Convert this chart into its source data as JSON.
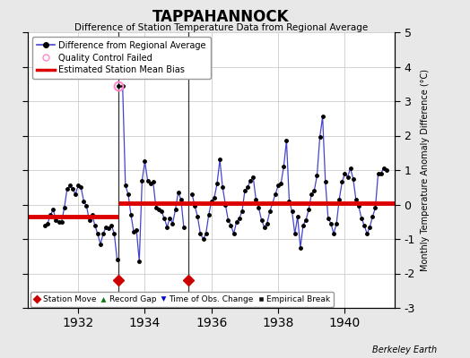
{
  "title": "TAPPAHANNOCK",
  "subtitle": "Difference of Station Temperature Data from Regional Average",
  "ylabel_right": "Monthly Temperature Anomaly Difference (°C)",
  "credit": "Berkeley Earth",
  "xlim": [
    1930.5,
    1941.5
  ],
  "ylim": [
    -3,
    5
  ],
  "yticks": [
    -3,
    -2,
    -1,
    0,
    1,
    2,
    3,
    4,
    5
  ],
  "xticks": [
    1932,
    1934,
    1936,
    1938,
    1940
  ],
  "background_color": "#e8e8e8",
  "plot_bg_color": "#ffffff",
  "line_color": "#4444cc",
  "marker_color": "#000000",
  "bias_color": "#dd0000",
  "qc_marker_color": "#ff88cc",
  "vline_color": "#333333",
  "station_move_color": "#cc0000",
  "record_gap_color": "#007700",
  "time_obs_color": "#0000cc",
  "empirical_break_color": "#111111",
  "segment1_bias": -0.35,
  "segment2_bias": 0.05,
  "segment3_bias": 0.05,
  "segment1_start": 1930.5,
  "segment1_end": 1933.2,
  "segment2_start": 1933.2,
  "segment2_end": 1935.3,
  "segment3_start": 1935.3,
  "segment3_end": 1941.5,
  "vlines": [
    1933.2,
    1935.3
  ],
  "station_moves": [
    1933.2,
    1935.3
  ],
  "qc_fail_time": 1933.2,
  "qc_fail_value": 3.45,
  "data_times": [
    1931.0,
    1931.083,
    1931.167,
    1931.25,
    1931.333,
    1931.417,
    1931.5,
    1931.583,
    1931.667,
    1931.75,
    1931.833,
    1931.917,
    1932.0,
    1932.083,
    1932.167,
    1932.25,
    1932.333,
    1932.417,
    1932.5,
    1932.583,
    1932.667,
    1932.75,
    1932.833,
    1932.917,
    1933.0,
    1933.083,
    1933.167,
    1933.333,
    1933.417,
    1933.5,
    1933.583,
    1933.667,
    1933.75,
    1933.833,
    1933.917,
    1934.0,
    1934.083,
    1934.167,
    1934.25,
    1934.333,
    1934.417,
    1934.5,
    1934.583,
    1934.667,
    1934.75,
    1934.833,
    1934.917,
    1935.0,
    1935.083,
    1935.167,
    1935.417,
    1935.5,
    1935.583,
    1935.667,
    1935.75,
    1935.833,
    1935.917,
    1936.0,
    1936.083,
    1936.167,
    1936.25,
    1936.333,
    1936.417,
    1936.5,
    1936.583,
    1936.667,
    1936.75,
    1936.833,
    1936.917,
    1937.0,
    1937.083,
    1937.167,
    1937.25,
    1937.333,
    1937.417,
    1937.5,
    1937.583,
    1937.667,
    1937.75,
    1937.833,
    1937.917,
    1938.0,
    1938.083,
    1938.167,
    1938.25,
    1938.333,
    1938.417,
    1938.5,
    1938.583,
    1938.667,
    1938.75,
    1938.833,
    1938.917,
    1939.0,
    1939.083,
    1939.167,
    1939.25,
    1939.333,
    1939.417,
    1939.5,
    1939.583,
    1939.667,
    1939.75,
    1939.833,
    1939.917,
    1940.0,
    1940.083,
    1940.167,
    1940.25,
    1940.333,
    1940.417,
    1940.5,
    1940.583,
    1940.667,
    1940.75,
    1940.833,
    1940.917,
    1941.0,
    1941.083,
    1941.167,
    1941.25
  ],
  "data_values": [
    -0.6,
    -0.55,
    -0.3,
    -0.15,
    -0.45,
    -0.5,
    -0.5,
    -0.1,
    0.45,
    0.55,
    0.45,
    0.3,
    0.55,
    0.5,
    0.1,
    -0.05,
    -0.45,
    -0.3,
    -0.6,
    -0.85,
    -1.15,
    -0.85,
    -0.65,
    -0.7,
    -0.6,
    -0.85,
    -1.6,
    3.45,
    0.55,
    0.3,
    -0.3,
    -0.8,
    -0.75,
    -1.65,
    0.7,
    1.25,
    0.7,
    0.6,
    0.65,
    -0.1,
    -0.15,
    -0.2,
    -0.4,
    -0.65,
    -0.4,
    -0.55,
    -0.15,
    0.35,
    0.15,
    -0.65,
    0.3,
    -0.05,
    -0.35,
    -0.85,
    -1.0,
    -0.85,
    -0.3,
    0.1,
    0.2,
    0.6,
    1.3,
    0.5,
    0.0,
    -0.45,
    -0.6,
    -0.85,
    -0.5,
    -0.4,
    -0.2,
    0.4,
    0.5,
    0.7,
    0.8,
    0.15,
    -0.1,
    -0.45,
    -0.65,
    -0.55,
    -0.2,
    0.05,
    0.3,
    0.55,
    0.6,
    1.1,
    1.85,
    0.1,
    -0.2,
    -0.85,
    -0.35,
    -1.25,
    -0.6,
    -0.45,
    -0.15,
    0.3,
    0.4,
    0.85,
    1.95,
    2.55,
    0.65,
    -0.4,
    -0.55,
    -0.85,
    -0.55,
    0.15,
    0.65,
    0.9,
    0.8,
    1.05,
    0.75,
    0.15,
    -0.05,
    -0.4,
    -0.6,
    -0.85,
    -0.65,
    -0.35,
    -0.1,
    0.9,
    0.9,
    1.05,
    1.0
  ]
}
